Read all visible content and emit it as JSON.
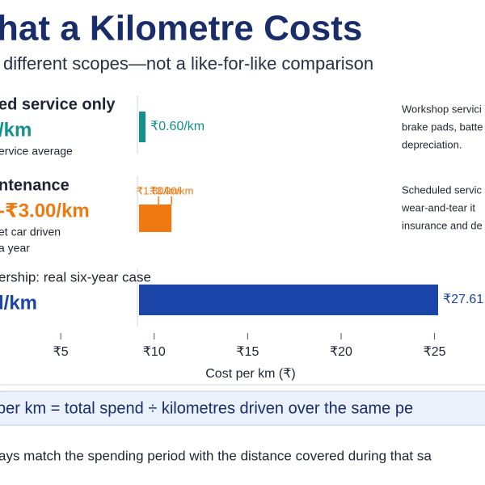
{
  "chart_data": {
    "type": "bar",
    "title": "hat a Kilometre Costs",
    "subtitle": "different scopes—not a like-for-like comparison",
    "x_label": "Cost per km (₹)",
    "xlim": [
      1.75,
      27.7
    ],
    "xticks": [
      {
        "value": 5,
        "label": "₹5"
      },
      {
        "value": 10,
        "label": "₹10"
      },
      {
        "value": 15,
        "label": "₹15"
      },
      {
        "value": 20,
        "label": "₹20"
      },
      {
        "value": 25,
        "label": "₹25"
      }
    ],
    "rows": [
      {
        "heading": "ed service only",
        "value_text": "/km",
        "caption": [
          "ervice average"
        ],
        "color": "#14918c",
        "values": [
          0.6
        ],
        "value_labels": [
          "₹0.60/km"
        ],
        "note": [
          "Workshop servici",
          "brake pads, batte",
          "depreciation."
        ]
      },
      {
        "heading": "ntenance",
        "value_text": "-₹3.00/km",
        "caption": [
          "et car driven",
          "a year"
        ],
        "color": "#f07a12",
        "values": [
          1.8,
          3.0
        ],
        "value_labels": [
          "₹1.80/km",
          "₹3.00/km"
        ],
        "note": [
          "Scheduled servic",
          "wear-and-tear it",
          "insurance and de"
        ]
      },
      {
        "heading": "ership: real six-year case",
        "value_text": "l/km",
        "caption": [],
        "color": "#1b45a8",
        "values": [
          27.61
        ],
        "value_labels": [
          "₹27.61"
        ],
        "note": []
      }
    ],
    "formula": "per km = total spend ÷ kilometres driven over the same pe",
    "footer": "ays match the spending period with the distance covered during that sa"
  }
}
